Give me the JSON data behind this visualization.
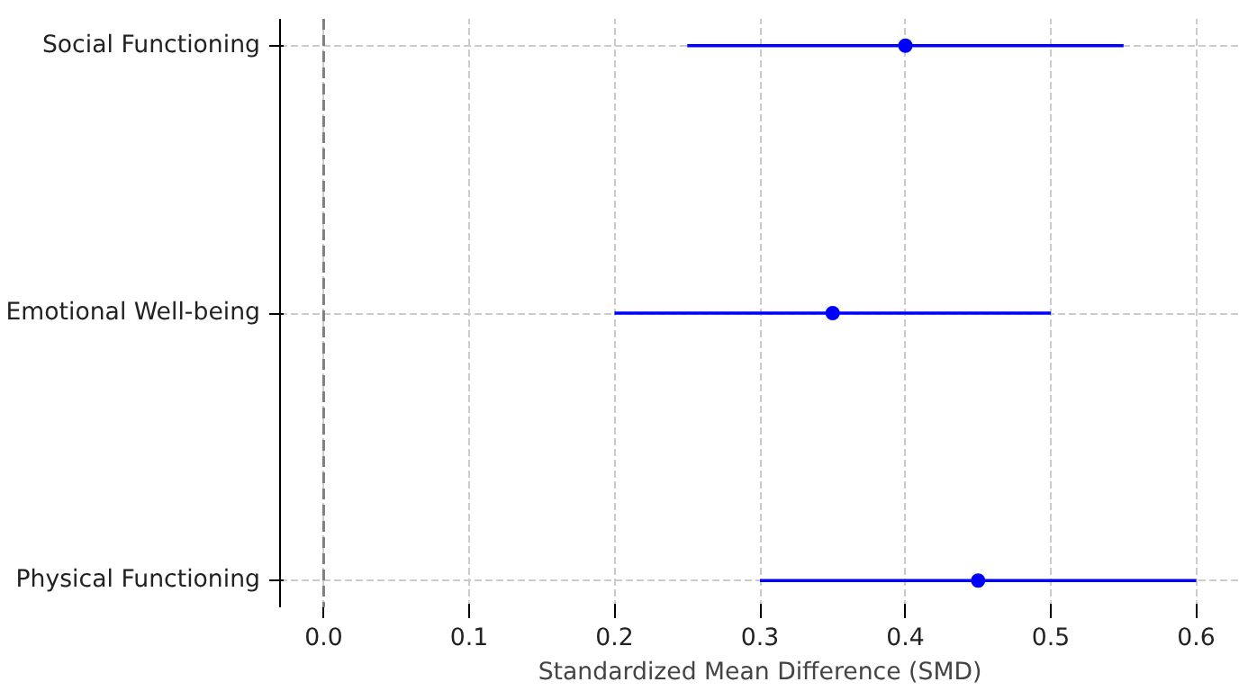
{
  "chart_data": {
    "type": "scatter",
    "orientation": "horizontal",
    "xlabel": "Standardized Mean Difference (SMD)",
    "categories": [
      "Social Functioning",
      "Emotional Well-being",
      "Physical Functioning"
    ],
    "color": "#0000ff",
    "values": [
      0.4,
      0.35,
      0.45
    ],
    "errors": [
      [
        0.25,
        0.55
      ],
      [
        0.2,
        0.5
      ],
      [
        0.3,
        0.6
      ]
    ],
    "xlim": [
      -0.03,
      0.63
    ],
    "xticks": [
      {
        "value": 0,
        "label": "0.0"
      },
      0.1,
      0.2,
      0.3,
      0.4,
      0.5,
      0.6
    ],
    "ref_lines": [
      {
        "axis": "x",
        "value": 0,
        "color": "#808080",
        "line_style": "dashed"
      }
    ],
    "grid": true,
    "marker": "circle"
  }
}
